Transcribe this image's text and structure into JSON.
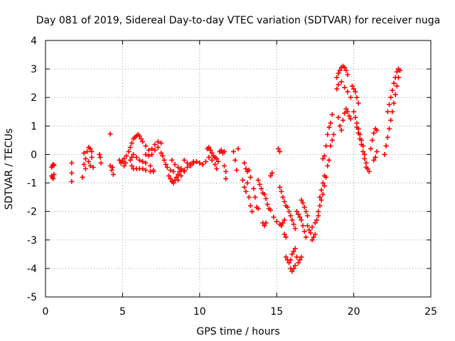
{
  "chart_data": {
    "type": "scatter",
    "title": "Day 081 of 2019, Sidereal Day-to-day VTEC variation (SDTVAR) for receiver nuga",
    "xlabel": "GPS time / hours",
    "ylabel": "SDTVAR / TECUs",
    "xlim": [
      0,
      25
    ],
    "ylim": [
      -5,
      4
    ],
    "xticks": [
      0,
      5,
      10,
      15,
      20,
      25
    ],
    "yticks": [
      -5,
      -4,
      -3,
      -2,
      -1,
      0,
      1,
      2,
      3,
      4
    ],
    "grid": true,
    "marker": "+",
    "series_color": "#ff0000",
    "series": [
      {
        "name": "SDTVAR",
        "points": [
          [
            0.4,
            -0.45
          ],
          [
            0.45,
            -0.4
          ],
          [
            0.5,
            -0.35
          ],
          [
            0.55,
            -0.38
          ],
          [
            0.4,
            -0.75
          ],
          [
            0.45,
            -0.8
          ],
          [
            0.5,
            -0.85
          ],
          [
            0.55,
            -0.7
          ],
          [
            1.7,
            -0.3
          ],
          [
            1.7,
            -0.65
          ],
          [
            1.7,
            -0.95
          ],
          [
            2.4,
            -0.8
          ],
          [
            2.5,
            0.05
          ],
          [
            2.5,
            -0.35
          ],
          [
            2.6,
            -0.15
          ],
          [
            2.6,
            -0.5
          ],
          [
            2.7,
            0.1
          ],
          [
            2.8,
            0.25
          ],
          [
            2.8,
            -0.25
          ],
          [
            2.9,
            0.2
          ],
          [
            2.9,
            -0.4
          ],
          [
            3.0,
            -0.1
          ],
          [
            3.0,
            0.1
          ],
          [
            3.1,
            -0.45
          ],
          [
            3.5,
            0.0
          ],
          [
            3.55,
            -0.1
          ],
          [
            3.6,
            -0.3
          ],
          [
            4.2,
            0.72
          ],
          [
            4.2,
            -0.4
          ],
          [
            4.3,
            -0.55
          ],
          [
            4.4,
            -0.7
          ],
          [
            4.35,
            -0.45
          ],
          [
            4.8,
            -0.2
          ],
          [
            4.9,
            -0.3
          ],
          [
            5.0,
            -0.25
          ],
          [
            5.1,
            -0.4
          ],
          [
            5.1,
            -0.15
          ],
          [
            5.2,
            -0.3
          ],
          [
            5.25,
            -0.05
          ],
          [
            5.4,
            0.1
          ],
          [
            5.5,
            0.25
          ],
          [
            5.6,
            0.4
          ],
          [
            5.7,
            0.55
          ],
          [
            5.8,
            0.6
          ],
          [
            5.9,
            0.65
          ],
          [
            6.0,
            0.7
          ],
          [
            6.1,
            0.65
          ],
          [
            6.2,
            0.55
          ],
          [
            5.5,
            -0.2
          ],
          [
            5.6,
            -0.4
          ],
          [
            5.7,
            -0.5
          ],
          [
            5.9,
            -0.5
          ],
          [
            6.1,
            -0.5
          ],
          [
            6.3,
            -0.5
          ],
          [
            6.5,
            -0.55
          ],
          [
            6.8,
            -0.6
          ],
          [
            7.0,
            -0.6
          ],
          [
            5.6,
            -0.1
          ],
          [
            5.7,
            0.0
          ],
          [
            5.9,
            -0.1
          ],
          [
            6.1,
            -0.2
          ],
          [
            6.3,
            -0.25
          ],
          [
            6.5,
            -0.3
          ],
          [
            6.8,
            -0.4
          ],
          [
            7.0,
            -0.55
          ],
          [
            6.3,
            0.45
          ],
          [
            6.5,
            0.3
          ],
          [
            6.7,
            0.15
          ],
          [
            6.9,
            0.2
          ],
          [
            7.1,
            0.35
          ],
          [
            7.3,
            0.45
          ],
          [
            7.5,
            0.4
          ],
          [
            6.5,
            0.0
          ],
          [
            6.7,
            -0.05
          ],
          [
            6.9,
            0.0
          ],
          [
            7.1,
            0.15
          ],
          [
            7.3,
            0.25
          ],
          [
            7.5,
            0.05
          ],
          [
            7.6,
            -0.05
          ],
          [
            7.7,
            -0.2
          ],
          [
            7.8,
            -0.35
          ],
          [
            7.9,
            -0.45
          ],
          [
            8.1,
            -0.55
          ],
          [
            8.3,
            -0.6
          ],
          [
            8.0,
            -0.75
          ],
          [
            8.1,
            -0.85
          ],
          [
            8.2,
            -0.95
          ],
          [
            8.3,
            -1.0
          ],
          [
            8.4,
            -0.9
          ],
          [
            8.5,
            -0.8
          ],
          [
            8.6,
            -0.7
          ],
          [
            8.7,
            -0.6
          ],
          [
            8.8,
            -0.5
          ],
          [
            8.2,
            -0.2
          ],
          [
            8.4,
            -0.35
          ],
          [
            8.6,
            -0.45
          ],
          [
            8.8,
            -0.55
          ],
          [
            9.0,
            -0.55
          ],
          [
            8.6,
            -0.9
          ],
          [
            8.8,
            -0.75
          ],
          [
            9.0,
            -0.6
          ],
          [
            9.2,
            -0.45
          ],
          [
            9.4,
            -0.35
          ],
          [
            9.6,
            -0.25
          ],
          [
            9.0,
            -0.2
          ],
          [
            9.2,
            -0.3
          ],
          [
            9.4,
            -0.4
          ],
          [
            9.6,
            -0.3
          ],
          [
            9.8,
            -0.25
          ],
          [
            10.0,
            -0.3
          ],
          [
            10.2,
            -0.35
          ],
          [
            10.4,
            -0.25
          ],
          [
            10.5,
            0.2
          ],
          [
            10.6,
            0.25
          ],
          [
            10.7,
            0.15
          ],
          [
            10.8,
            0.05
          ],
          [
            10.9,
            -0.05
          ],
          [
            11.0,
            -0.1
          ],
          [
            11.1,
            -0.15
          ],
          [
            10.6,
            -0.1
          ],
          [
            10.8,
            -0.2
          ],
          [
            11.0,
            -0.35
          ],
          [
            11.1,
            -0.5
          ],
          [
            11.2,
            -0.25
          ],
          [
            11.3,
            0.1
          ],
          [
            11.4,
            0.15
          ],
          [
            11.5,
            0.05
          ],
          [
            11.6,
            0.1
          ],
          [
            11.6,
            -0.4
          ],
          [
            11.7,
            -0.6
          ],
          [
            11.7,
            -0.85
          ],
          [
            12.2,
            0.1
          ],
          [
            12.3,
            -0.2
          ],
          [
            12.4,
            -0.55
          ],
          [
            12.5,
            0.2
          ],
          [
            12.9,
            -0.3
          ],
          [
            13.0,
            -0.5
          ],
          [
            13.1,
            -0.6
          ],
          [
            13.2,
            -0.55
          ],
          [
            13.3,
            -0.8
          ],
          [
            12.8,
            -0.9
          ],
          [
            12.9,
            -1.15
          ],
          [
            13.0,
            -1.3
          ],
          [
            13.1,
            -1.0
          ],
          [
            13.2,
            -1.5
          ],
          [
            13.3,
            -1.8
          ],
          [
            13.4,
            -2.0
          ],
          [
            13.5,
            -1.2
          ],
          [
            13.6,
            -1.5
          ],
          [
            13.7,
            -1.85
          ],
          [
            13.8,
            -1.9
          ],
          [
            13.8,
            -0.9
          ],
          [
            13.9,
            -1.05
          ],
          [
            14.0,
            -1.2
          ],
          [
            14.1,
            -1.35
          ],
          [
            14.2,
            -1.4
          ],
          [
            14.3,
            -1.55
          ],
          [
            14.4,
            -1.75
          ],
          [
            14.5,
            -1.9
          ],
          [
            14.1,
            -2.4
          ],
          [
            14.2,
            -2.5
          ],
          [
            14.3,
            -2.4
          ],
          [
            14.6,
            -0.75
          ],
          [
            14.7,
            -0.65
          ],
          [
            14.6,
            -1.95
          ],
          [
            14.8,
            -2.2
          ],
          [
            15.0,
            -2.35
          ],
          [
            15.2,
            -2.45
          ],
          [
            15.3,
            -2.5
          ],
          [
            15.4,
            -2.4
          ],
          [
            15.5,
            -2.3
          ],
          [
            15.1,
            0.2
          ],
          [
            15.2,
            0.1
          ],
          [
            15.2,
            -1.15
          ],
          [
            15.3,
            -1.3
          ],
          [
            15.4,
            -1.5
          ],
          [
            15.5,
            -1.65
          ],
          [
            15.6,
            -1.8
          ],
          [
            15.5,
            -2.8
          ],
          [
            15.6,
            -2.9
          ],
          [
            15.7,
            -1.85
          ],
          [
            15.8,
            -2.0
          ],
          [
            15.9,
            -2.15
          ],
          [
            16.0,
            -2.3
          ],
          [
            16.1,
            -2.45
          ],
          [
            16.2,
            -2.6
          ],
          [
            15.6,
            -3.6
          ],
          [
            15.7,
            -3.7
          ],
          [
            15.8,
            -3.8
          ],
          [
            15.9,
            -3.7
          ],
          [
            16.0,
            -3.5
          ],
          [
            16.1,
            -3.4
          ],
          [
            16.2,
            -3.3
          ],
          [
            16.3,
            -3.6
          ],
          [
            16.4,
            -3.8
          ],
          [
            16.5,
            -3.7
          ],
          [
            16.6,
            -3.6
          ],
          [
            15.9,
            -4.0
          ],
          [
            16.0,
            -4.1
          ],
          [
            16.1,
            -4.0
          ],
          [
            16.2,
            -3.9
          ],
          [
            16.3,
            -2.0
          ],
          [
            16.4,
            -2.1
          ],
          [
            16.5,
            -2.2
          ],
          [
            16.6,
            -2.3
          ],
          [
            16.7,
            -2.5
          ],
          [
            16.8,
            -2.7
          ],
          [
            16.9,
            -2.9
          ],
          [
            16.6,
            -1.6
          ],
          [
            16.7,
            -1.7
          ],
          [
            16.8,
            -1.85
          ],
          [
            16.9,
            -2.0
          ],
          [
            17.0,
            -2.15
          ],
          [
            17.0,
            -2.5
          ],
          [
            17.1,
            -2.65
          ],
          [
            17.2,
            -2.75
          ],
          [
            17.3,
            -2.55
          ],
          [
            17.5,
            -2.4
          ],
          [
            17.6,
            -2.3
          ],
          [
            17.7,
            -2.15
          ],
          [
            17.3,
            -3.0
          ],
          [
            17.4,
            -2.9
          ],
          [
            17.5,
            -2.8
          ],
          [
            17.8,
            -1.5
          ],
          [
            17.9,
            -1.25
          ],
          [
            18.0,
            -1.0
          ],
          [
            18.1,
            -0.75
          ],
          [
            17.7,
            -2.0
          ],
          [
            17.8,
            -1.8
          ],
          [
            17.9,
            -1.6
          ],
          [
            18.0,
            -1.4
          ],
          [
            18.1,
            -1.1
          ],
          [
            18.2,
            -0.8
          ],
          [
            18.3,
            -0.4
          ],
          [
            18.4,
            -0.2
          ],
          [
            18.0,
            -0.15
          ],
          [
            18.1,
            -0.05
          ],
          [
            18.2,
            0.3
          ],
          [
            18.3,
            0.7
          ],
          [
            18.4,
            0.95
          ],
          [
            18.5,
            1.1
          ],
          [
            18.6,
            1.4
          ],
          [
            18.5,
            0.3
          ],
          [
            18.6,
            0.5
          ],
          [
            18.7,
            0.7
          ],
          [
            18.9,
            2.7
          ],
          [
            19.0,
            2.85
          ],
          [
            19.1,
            2.95
          ],
          [
            19.2,
            3.05
          ],
          [
            19.3,
            3.1
          ],
          [
            19.4,
            3.05
          ],
          [
            19.5,
            2.95
          ],
          [
            19.6,
            2.8
          ],
          [
            18.9,
            2.3
          ],
          [
            19.0,
            2.45
          ],
          [
            19.2,
            2.55
          ],
          [
            19.4,
            2.35
          ],
          [
            19.6,
            2.2
          ],
          [
            19.8,
            2.0
          ],
          [
            19.0,
            1.3
          ],
          [
            19.1,
            1.0
          ],
          [
            19.2,
            0.85
          ],
          [
            19.3,
            1.2
          ],
          [
            19.4,
            1.45
          ],
          [
            19.5,
            1.6
          ],
          [
            19.6,
            1.5
          ],
          [
            19.7,
            1.35
          ],
          [
            19.8,
            1.25
          ],
          [
            19.9,
            2.4
          ],
          [
            20.0,
            2.3
          ],
          [
            20.1,
            2.2
          ],
          [
            20.2,
            2.0
          ],
          [
            20.3,
            1.8
          ],
          [
            20.0,
            1.5
          ],
          [
            20.1,
            1.3
          ],
          [
            20.2,
            1.1
          ],
          [
            20.3,
            0.9
          ],
          [
            20.4,
            0.7
          ],
          [
            20.5,
            0.5
          ],
          [
            20.6,
            0.3
          ],
          [
            20.7,
            0.0
          ],
          [
            20.8,
            -0.3
          ],
          [
            20.9,
            -0.5
          ],
          [
            21.0,
            -0.6
          ],
          [
            20.2,
            0.95
          ],
          [
            20.3,
            0.75
          ],
          [
            20.4,
            0.55
          ],
          [
            20.5,
            0.35
          ],
          [
            20.6,
            0.1
          ],
          [
            20.7,
            -0.15
          ],
          [
            20.8,
            -0.45
          ],
          [
            21.1,
            0.2
          ],
          [
            21.2,
            0.5
          ],
          [
            21.3,
            0.75
          ],
          [
            21.4,
            0.9
          ],
          [
            21.5,
            0.85
          ],
          [
            21.3,
            -0.2
          ],
          [
            21.4,
            -0.1
          ],
          [
            21.5,
            0.1
          ],
          [
            22.0,
            0.0
          ],
          [
            22.1,
            0.3
          ],
          [
            22.2,
            0.6
          ],
          [
            22.3,
            0.9
          ],
          [
            22.4,
            1.2
          ],
          [
            22.5,
            1.5
          ],
          [
            22.6,
            1.8
          ],
          [
            22.7,
            2.1
          ],
          [
            22.8,
            2.4
          ],
          [
            22.9,
            2.7
          ],
          [
            23.0,
            2.95
          ],
          [
            22.2,
            1.5
          ],
          [
            22.3,
            1.75
          ],
          [
            22.4,
            2.0
          ],
          [
            22.5,
            2.25
          ],
          [
            22.6,
            2.5
          ],
          [
            22.7,
            2.7
          ],
          [
            22.8,
            2.9
          ],
          [
            22.9,
            3.0
          ]
        ]
      }
    ]
  }
}
